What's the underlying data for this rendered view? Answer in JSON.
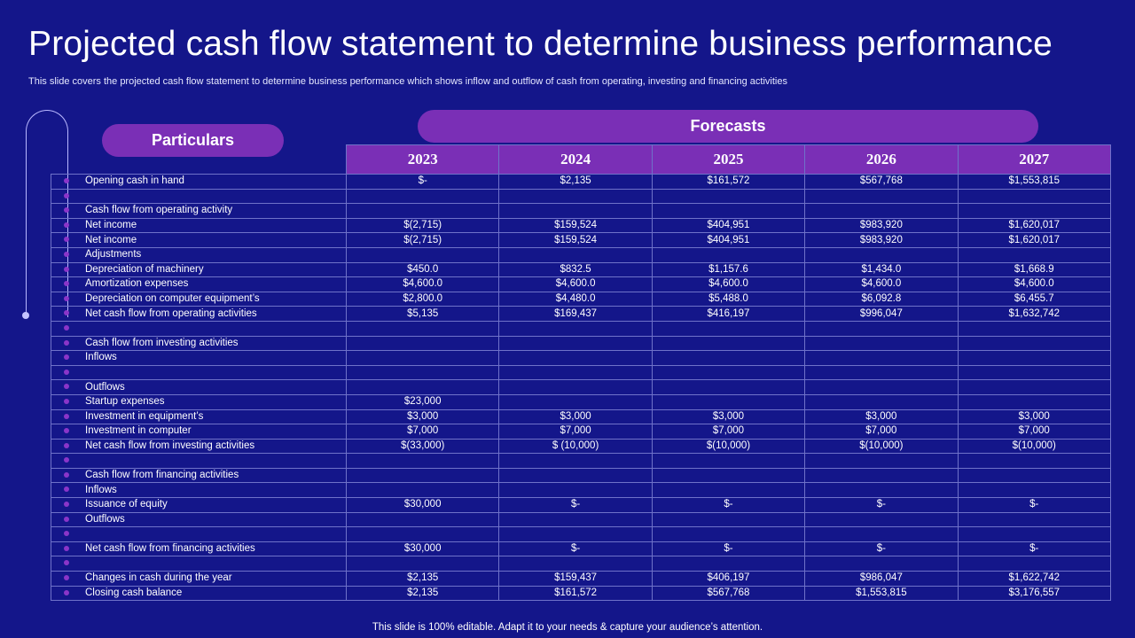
{
  "title": "Projected cash flow statement to determine business performance",
  "subtitle": "This slide covers the projected cash flow statement to determine business performance which shows inflow and outflow of cash from operating, investing and financing activities",
  "particulars_label": "Particulars",
  "forecasts_label": "Forecasts",
  "years": [
    "2023",
    "2024",
    "2025",
    "2026",
    "2027"
  ],
  "rows": [
    {
      "label": "Opening cash in hand",
      "values": [
        "$-",
        "$2,135",
        "$161,572",
        "$567,768",
        "$1,553,815"
      ]
    },
    {
      "label": "",
      "values": [
        "",
        "",
        "",
        "",
        ""
      ]
    },
    {
      "label": "Cash flow from operating activity",
      "values": [
        "",
        "",
        "",
        "",
        ""
      ]
    },
    {
      "label": "Net income",
      "values": [
        "$(2,715)",
        "$159,524",
        "$404,951",
        "$983,920",
        "$1,620,017"
      ]
    },
    {
      "label": "Net income",
      "values": [
        "$(2,715)",
        "$159,524",
        "$404,951",
        "$983,920",
        "$1,620,017"
      ]
    },
    {
      "label": "Adjustments",
      "values": [
        "",
        "",
        "",
        "",
        ""
      ]
    },
    {
      "label": "Depreciation of machinery",
      "values": [
        "$450.0",
        "$832.5",
        "$1,157.6",
        "$1,434.0",
        "$1,668.9"
      ]
    },
    {
      "label": "Amortization expenses",
      "values": [
        "$4,600.0",
        "$4,600.0",
        "$4,600.0",
        "$4,600.0",
        "$4,600.0"
      ]
    },
    {
      "label": "Depreciation on computer equipment’s",
      "values": [
        "$2,800.0",
        "$4,480.0",
        "$5,488.0",
        "$6,092.8",
        "$6,455.7"
      ]
    },
    {
      "label": "Net cash flow from operating activities",
      "values": [
        "$5,135",
        "$169,437",
        "$416,197",
        "$996,047",
        "$1,632,742"
      ]
    },
    {
      "label": "",
      "values": [
        "",
        "",
        "",
        "",
        ""
      ]
    },
    {
      "label": "Cash flow from investing activities",
      "values": [
        "",
        "",
        "",
        "",
        ""
      ]
    },
    {
      "label": "Inflows",
      "values": [
        "",
        "",
        "",
        "",
        ""
      ]
    },
    {
      "label": "",
      "values": [
        "",
        "",
        "",
        "",
        ""
      ]
    },
    {
      "label": "Outflows",
      "values": [
        "",
        "",
        "",
        "",
        ""
      ]
    },
    {
      "label": "Startup expenses",
      "values": [
        "$23,000",
        "",
        "",
        "",
        ""
      ]
    },
    {
      "label": "Investment in equipment’s",
      "values": [
        "$3,000",
        "$3,000",
        "$3,000",
        "$3,000",
        "$3,000"
      ]
    },
    {
      "label": "Investment in computer",
      "values": [
        "$7,000",
        "$7,000",
        "$7,000",
        "$7,000",
        "$7,000"
      ]
    },
    {
      "label": "Net cash flow from investing activities",
      "values": [
        "$(33,000)",
        "$ (10,000)",
        "$(10,000)",
        "$(10,000)",
        "$(10,000)"
      ]
    },
    {
      "label": "",
      "values": [
        "",
        "",
        "",
        "",
        ""
      ]
    },
    {
      "label": "Cash flow from financing activities",
      "values": [
        "",
        "",
        "",
        "",
        ""
      ]
    },
    {
      "label": "Inflows",
      "values": [
        "",
        "",
        "",
        "",
        ""
      ]
    },
    {
      "label": "Issuance of equity",
      "values": [
        "$30,000",
        "$-",
        "$-",
        "$-",
        "$-"
      ]
    },
    {
      "label": "Outflows",
      "values": [
        "",
        "",
        "",
        "",
        ""
      ]
    },
    {
      "label": "",
      "values": [
        "",
        "",
        "",
        "",
        ""
      ]
    },
    {
      "label": "Net cash flow from financing activities",
      "values": [
        "$30,000",
        "$-",
        "$-",
        "$-",
        "$-"
      ]
    },
    {
      "label": "",
      "values": [
        "",
        "",
        "",
        "",
        ""
      ]
    },
    {
      "label": "Changes in cash during the year",
      "values": [
        "$2,135",
        "$159,437",
        "$406,197",
        "$986,047",
        "$1,622,742"
      ]
    },
    {
      "label": "Closing cash balance",
      "values": [
        "$2,135",
        "$161,572",
        "$567,768",
        "$1,553,815",
        "$3,176,557"
      ]
    }
  ],
  "footer": "This slide is 100% editable. Adapt it to your needs & capture your audience’s attention.",
  "colors": {
    "background": "#14168a",
    "accent_purple": "#7a2fb6",
    "bullet": "#8a35c9",
    "grid": "#6f72c9"
  }
}
